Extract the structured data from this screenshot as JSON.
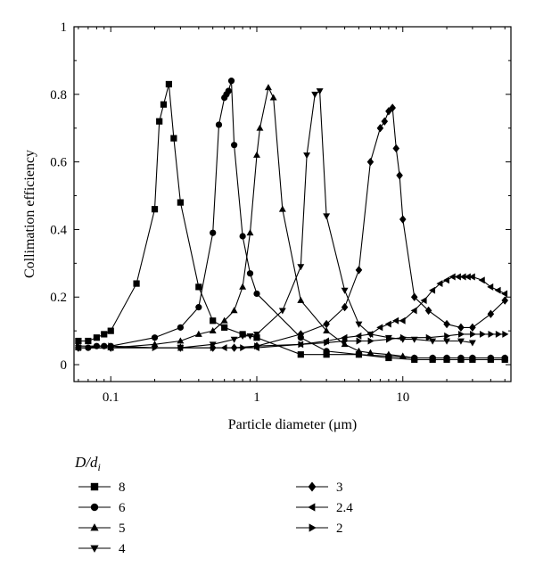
{
  "chart_data": {
    "type": "line",
    "title": "",
    "xlabel": "Particle diameter (μm)",
    "ylabel": "Collimation efficiency",
    "xscale": "log",
    "xlim": [
      0.056,
      55
    ],
    "ylim": [
      -0.05,
      1
    ],
    "x_ticks": [
      {
        "value": 0.1,
        "label": "0.1"
      },
      {
        "value": 1,
        "label": "1"
      },
      {
        "value": 10,
        "label": "10"
      }
    ],
    "y_ticks": [
      {
        "value": 0,
        "label": "0"
      },
      {
        "value": 0.2,
        "label": "0.2"
      },
      {
        "value": 0.4,
        "label": "0.4"
      },
      {
        "value": 0.6,
        "label": "0.6"
      },
      {
        "value": 0.8,
        "label": "0.8"
      },
      {
        "value": 1,
        "label": "1"
      }
    ],
    "grid": false,
    "legend": {
      "title_main": "D/d",
      "title_sub": "i",
      "placement": "below"
    },
    "series": [
      {
        "name": "8",
        "marker": "square",
        "points": [
          [
            0.06,
            0.07
          ],
          [
            0.07,
            0.07
          ],
          [
            0.08,
            0.08
          ],
          [
            0.09,
            0.09
          ],
          [
            0.1,
            0.1
          ],
          [
            0.15,
            0.24
          ],
          [
            0.2,
            0.46
          ],
          [
            0.215,
            0.72
          ],
          [
            0.23,
            0.77
          ],
          [
            0.25,
            0.83
          ],
          [
            0.27,
            0.67
          ],
          [
            0.3,
            0.48
          ],
          [
            0.4,
            0.23
          ],
          [
            0.5,
            0.13
          ],
          [
            0.6,
            0.11
          ],
          [
            0.8,
            0.09
          ],
          [
            1,
            0.08
          ],
          [
            2,
            0.03
          ],
          [
            3,
            0.03
          ],
          [
            5,
            0.03
          ],
          [
            8,
            0.02
          ],
          [
            12,
            0.015
          ],
          [
            16,
            0.015
          ],
          [
            20,
            0.015
          ],
          [
            25,
            0.015
          ],
          [
            30,
            0.015
          ],
          [
            40,
            0.015
          ],
          [
            50,
            0.015
          ]
        ]
      },
      {
        "name": "6",
        "marker": "circle",
        "points": [
          [
            0.06,
            0.05
          ],
          [
            0.07,
            0.05
          ],
          [
            0.08,
            0.055
          ],
          [
            0.09,
            0.055
          ],
          [
            0.1,
            0.055
          ],
          [
            0.2,
            0.08
          ],
          [
            0.3,
            0.11
          ],
          [
            0.4,
            0.17
          ],
          [
            0.5,
            0.39
          ],
          [
            0.55,
            0.71
          ],
          [
            0.6,
            0.79
          ],
          [
            0.62,
            0.8
          ],
          [
            0.64,
            0.81
          ],
          [
            0.67,
            0.84
          ],
          [
            0.7,
            0.65
          ],
          [
            0.8,
            0.38
          ],
          [
            0.9,
            0.27
          ],
          [
            1,
            0.21
          ],
          [
            2,
            0.08
          ],
          [
            3,
            0.04
          ],
          [
            5,
            0.03
          ],
          [
            8,
            0.025
          ],
          [
            12,
            0.02
          ],
          [
            16,
            0.02
          ],
          [
            20,
            0.02
          ],
          [
            25,
            0.02
          ],
          [
            30,
            0.02
          ],
          [
            40,
            0.02
          ],
          [
            50,
            0.02
          ]
        ]
      },
      {
        "name": "5",
        "marker": "triangle-up",
        "points": [
          [
            0.06,
            0.05
          ],
          [
            0.1,
            0.05
          ],
          [
            0.2,
            0.06
          ],
          [
            0.3,
            0.07
          ],
          [
            0.4,
            0.09
          ],
          [
            0.5,
            0.1
          ],
          [
            0.6,
            0.13
          ],
          [
            0.7,
            0.16
          ],
          [
            0.8,
            0.23
          ],
          [
            0.9,
            0.39
          ],
          [
            1,
            0.62
          ],
          [
            1.05,
            0.7
          ],
          [
            1.2,
            0.82
          ],
          [
            1.3,
            0.79
          ],
          [
            1.5,
            0.46
          ],
          [
            2,
            0.19
          ],
          [
            3,
            0.1
          ],
          [
            4,
            0.06
          ],
          [
            5,
            0.04
          ],
          [
            6,
            0.035
          ],
          [
            8,
            0.03
          ],
          [
            10,
            0.025
          ],
          [
            12,
            0.02
          ],
          [
            16,
            0.02
          ],
          [
            20,
            0.02
          ],
          [
            25,
            0.02
          ],
          [
            30,
            0.02
          ],
          [
            40,
            0.02
          ],
          [
            50,
            0.02
          ]
        ]
      },
      {
        "name": "4",
        "marker": "triangle-down",
        "points": [
          [
            0.06,
            0.05
          ],
          [
            0.1,
            0.05
          ],
          [
            0.3,
            0.05
          ],
          [
            0.5,
            0.06
          ],
          [
            0.7,
            0.075
          ],
          [
            0.8,
            0.085
          ],
          [
            0.9,
            0.085
          ],
          [
            1,
            0.09
          ],
          [
            1.5,
            0.16
          ],
          [
            2,
            0.29
          ],
          [
            2.2,
            0.62
          ],
          [
            2.5,
            0.8
          ],
          [
            2.7,
            0.81
          ],
          [
            3,
            0.44
          ],
          [
            4,
            0.22
          ],
          [
            5,
            0.12
          ],
          [
            6,
            0.09
          ],
          [
            8,
            0.08
          ],
          [
            10,
            0.075
          ],
          [
            12,
            0.075
          ],
          [
            16,
            0.07
          ],
          [
            20,
            0.07
          ],
          [
            25,
            0.07
          ],
          [
            30,
            0.065
          ]
        ]
      },
      {
        "name": "3",
        "marker": "diamond",
        "points": [
          [
            0.06,
            0.05
          ],
          [
            0.1,
            0.05
          ],
          [
            0.3,
            0.05
          ],
          [
            0.5,
            0.05
          ],
          [
            0.7,
            0.05
          ],
          [
            1,
            0.055
          ],
          [
            2,
            0.09
          ],
          [
            3,
            0.12
          ],
          [
            4,
            0.17
          ],
          [
            5,
            0.28
          ],
          [
            6,
            0.6
          ],
          [
            7,
            0.7
          ],
          [
            7.5,
            0.72
          ],
          [
            8,
            0.75
          ],
          [
            8.5,
            0.76
          ],
          [
            9,
            0.64
          ],
          [
            9.5,
            0.56
          ],
          [
            10,
            0.43
          ],
          [
            12,
            0.2
          ],
          [
            15,
            0.16
          ],
          [
            20,
            0.12
          ],
          [
            25,
            0.11
          ],
          [
            30,
            0.11
          ],
          [
            40,
            0.15
          ],
          [
            50,
            0.19
          ]
        ]
      },
      {
        "name": "2.4",
        "marker": "triangle-left",
        "points": [
          [
            0.06,
            0.05
          ],
          [
            0.1,
            0.05
          ],
          [
            0.3,
            0.05
          ],
          [
            0.6,
            0.05
          ],
          [
            1,
            0.05
          ],
          [
            2,
            0.06
          ],
          [
            3,
            0.07
          ],
          [
            4,
            0.08
          ],
          [
            5,
            0.085
          ],
          [
            6,
            0.09
          ],
          [
            7,
            0.11
          ],
          [
            8,
            0.12
          ],
          [
            9,
            0.13
          ],
          [
            10,
            0.13
          ],
          [
            12,
            0.16
          ],
          [
            14,
            0.19
          ],
          [
            16,
            0.22
          ],
          [
            18,
            0.24
          ],
          [
            20,
            0.25
          ],
          [
            22,
            0.26
          ],
          [
            24,
            0.26
          ],
          [
            26,
            0.26
          ],
          [
            28,
            0.26
          ],
          [
            30,
            0.26
          ],
          [
            35,
            0.25
          ],
          [
            40,
            0.23
          ],
          [
            45,
            0.22
          ],
          [
            50,
            0.21
          ]
        ]
      },
      {
        "name": "2",
        "marker": "triangle-right",
        "points": [
          [
            0.06,
            0.055
          ],
          [
            0.1,
            0.055
          ],
          [
            0.2,
            0.05
          ],
          [
            0.3,
            0.05
          ],
          [
            0.5,
            0.05
          ],
          [
            0.8,
            0.05
          ],
          [
            1,
            0.055
          ],
          [
            2,
            0.06
          ],
          [
            3,
            0.065
          ],
          [
            4,
            0.07
          ],
          [
            5,
            0.07
          ],
          [
            6,
            0.07
          ],
          [
            8,
            0.075
          ],
          [
            10,
            0.08
          ],
          [
            15,
            0.08
          ],
          [
            20,
            0.085
          ],
          [
            25,
            0.09
          ],
          [
            30,
            0.09
          ],
          [
            35,
            0.09
          ],
          [
            40,
            0.09
          ],
          [
            45,
            0.09
          ],
          [
            50,
            0.09
          ]
        ]
      }
    ]
  }
}
